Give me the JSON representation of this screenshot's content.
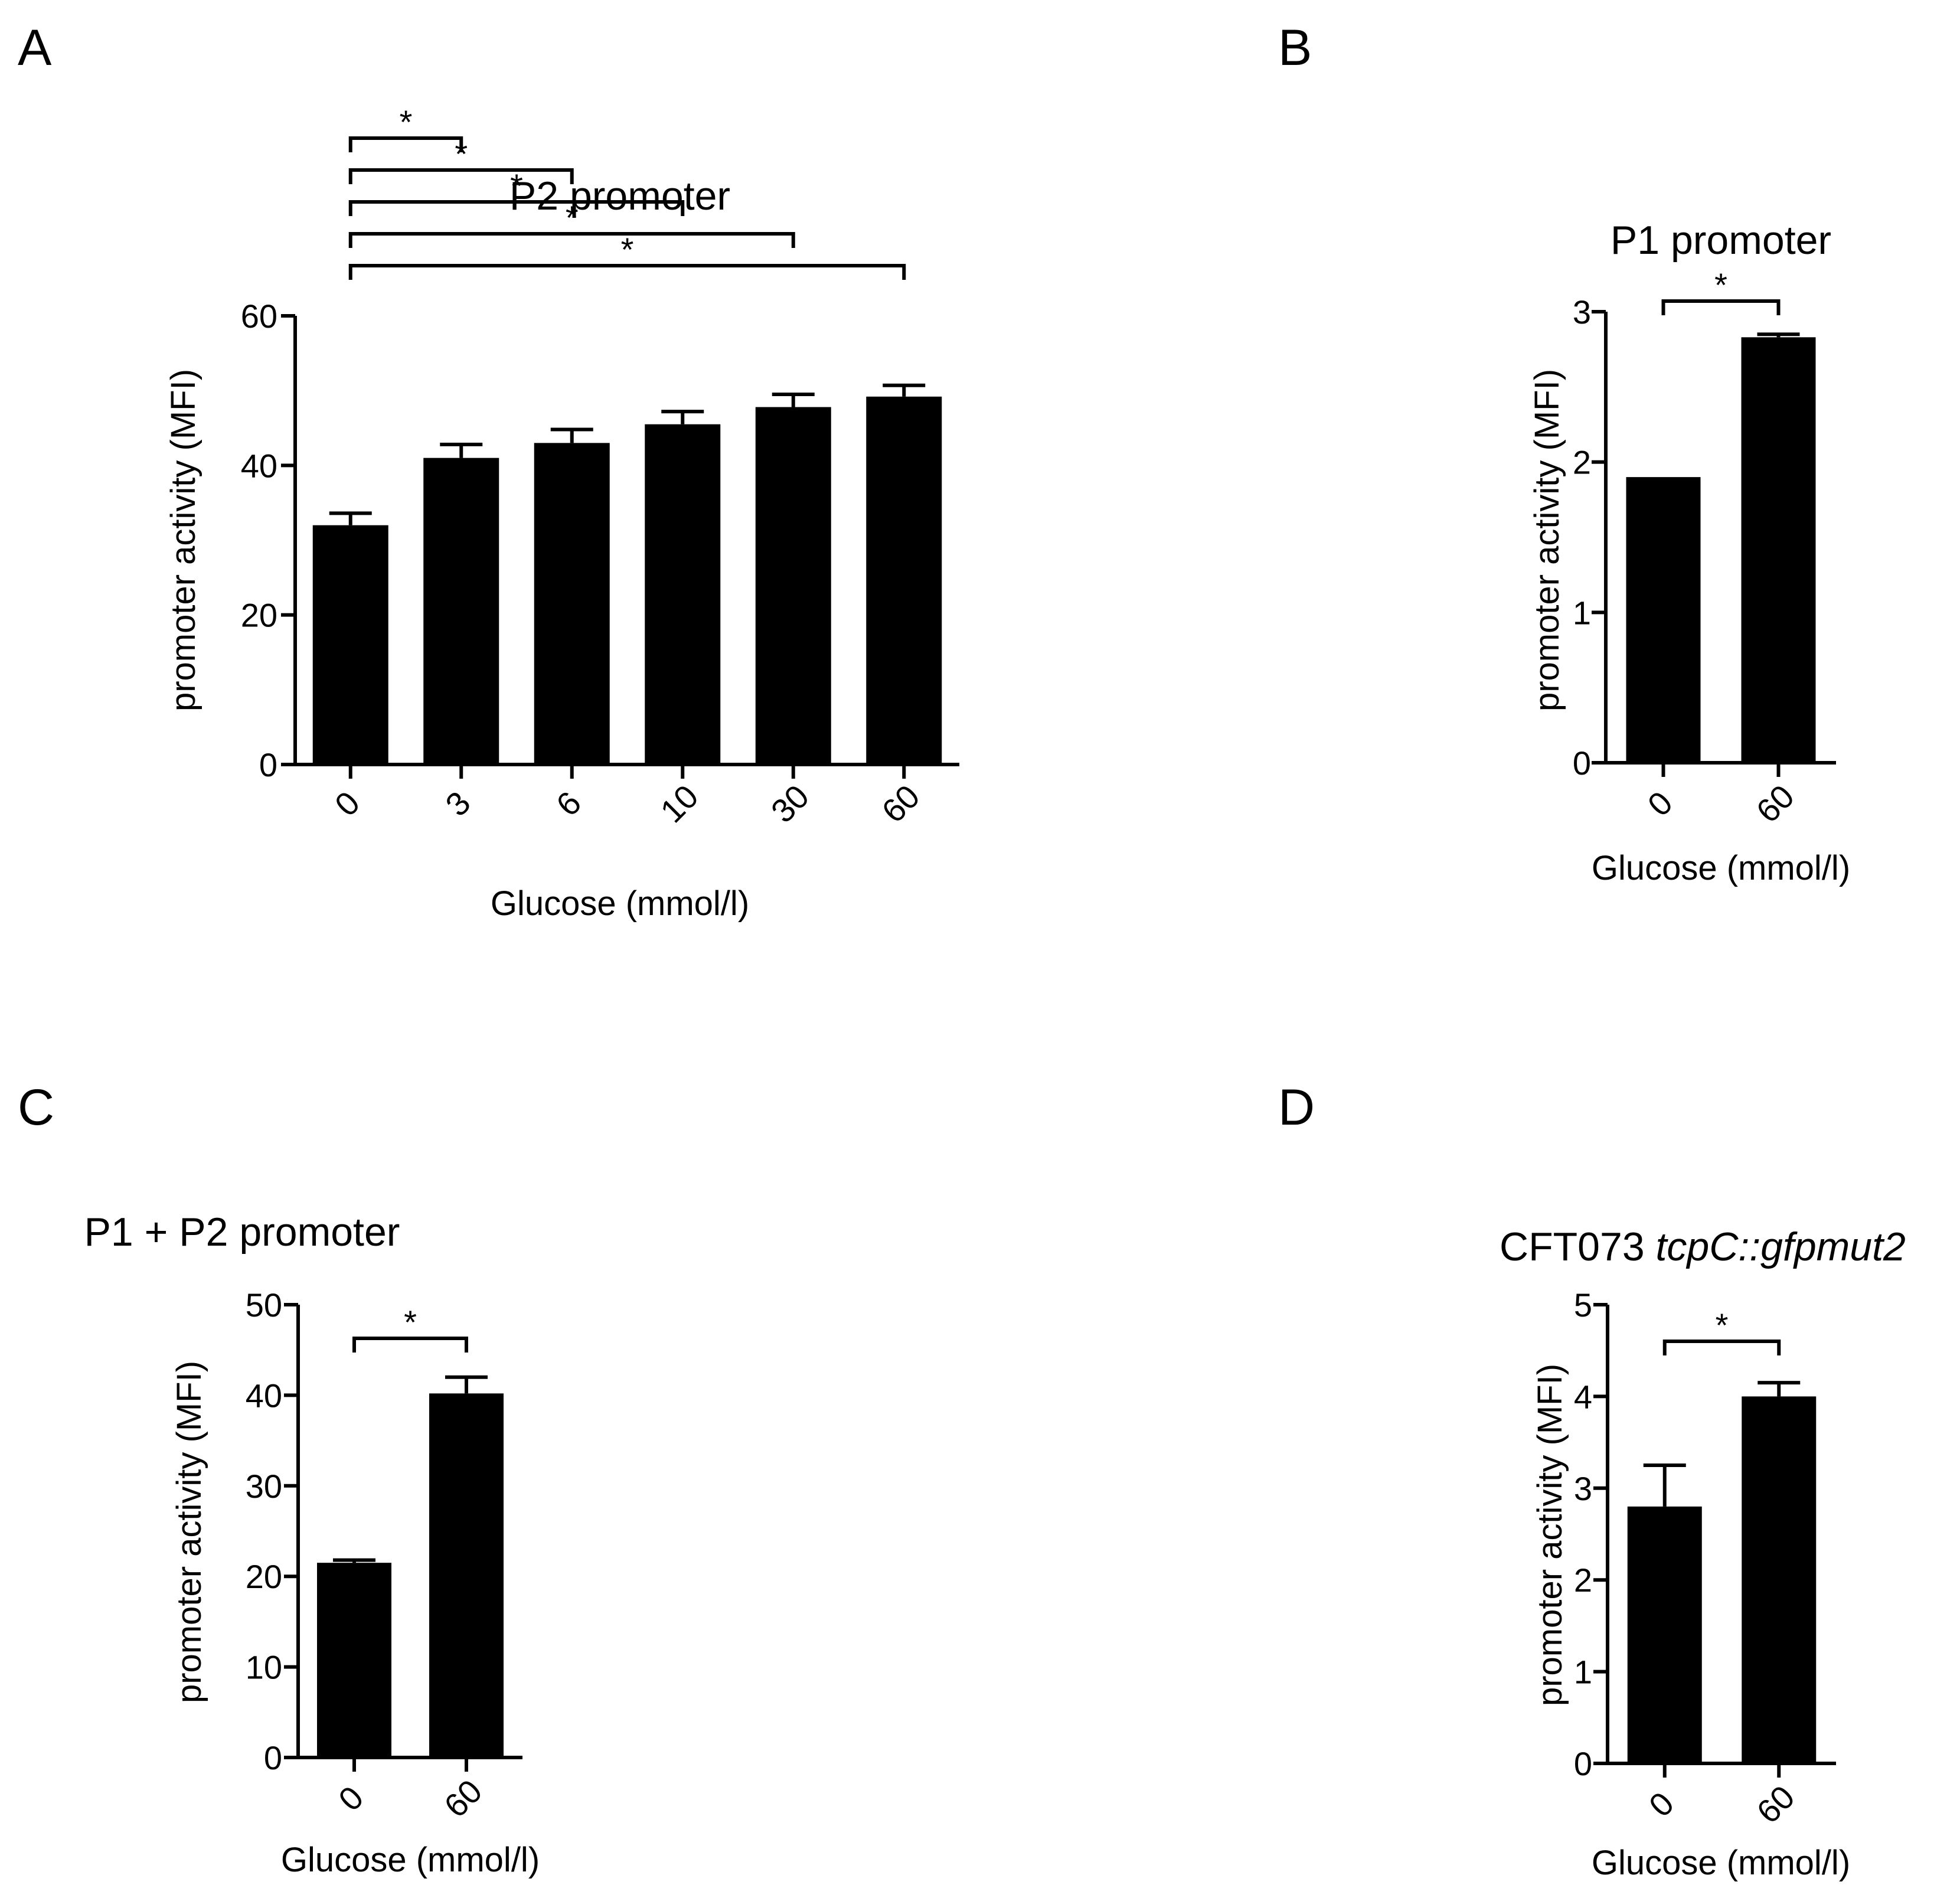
{
  "figure": {
    "ink_color": "#000000",
    "background_color": "#ffffff"
  },
  "chart_data": [
    {
      "panel_label": "A",
      "type": "bar",
      "title": "P2 promoter",
      "xlabel": "Glucose (mmol/l)",
      "ylabel": "promoter activity (MFI)",
      "categories": [
        "0",
        "3",
        "6",
        "10",
        "30",
        "60"
      ],
      "values": [
        32,
        41,
        43,
        45.5,
        47.8,
        49.2
      ],
      "errors": [
        1.6,
        1.8,
        1.8,
        1.7,
        1.7,
        1.5
      ],
      "ylim": [
        0,
        60
      ],
      "yticks": [
        "0",
        "20",
        "40",
        "60"
      ],
      "ytick_values": [
        0,
        20,
        40,
        60
      ],
      "comparisons": [
        {
          "from": 0,
          "to": 1,
          "label": "*"
        },
        {
          "from": 0,
          "to": 2,
          "label": "*"
        },
        {
          "from": 0,
          "to": 3,
          "label": "*"
        },
        {
          "from": 0,
          "to": 4,
          "label": "*"
        },
        {
          "from": 0,
          "to": 5,
          "label": "*"
        }
      ]
    },
    {
      "panel_label": "B",
      "type": "bar",
      "title": "P1 promoter",
      "xlabel": "Glucose (mmol/l)",
      "ylabel": "promoter activity (MFI)",
      "categories": [
        "0",
        "60"
      ],
      "values": [
        1.9,
        2.83
      ],
      "errors": [
        0,
        0.02
      ],
      "ylim": [
        0,
        3
      ],
      "yticks": [
        "0",
        "1",
        "2",
        "3"
      ],
      "ytick_values": [
        0,
        1,
        2,
        3
      ],
      "comparisons": [
        {
          "from": 0,
          "to": 1,
          "label": "*"
        }
      ]
    },
    {
      "panel_label": "C",
      "type": "bar",
      "title": "P1 + P2 promoter",
      "xlabel": "Glucose (mmol/l)",
      "ylabel": "promoter activity (MFI)",
      "categories": [
        "0",
        "60"
      ],
      "values": [
        21.5,
        40.2
      ],
      "errors": [
        0.3,
        1.8
      ],
      "ylim": [
        0,
        50
      ],
      "yticks": [
        "0",
        "10",
        "20",
        "30",
        "40",
        "50"
      ],
      "ytick_values": [
        0,
        10,
        20,
        30,
        40,
        50
      ],
      "comparisons": [
        {
          "from": 0,
          "to": 1,
          "label": "*"
        }
      ]
    },
    {
      "panel_label": "D",
      "type": "bar",
      "title": "CFT073 ",
      "title_italic": "tcpC::gfpmut2",
      "xlabel": "Glucose (mmol/l)",
      "ylabel": "promoter activity (MFI)",
      "categories": [
        "0",
        "60"
      ],
      "values": [
        2.8,
        4.0
      ],
      "errors": [
        0.45,
        0.15
      ],
      "ylim": [
        0,
        5
      ],
      "yticks": [
        "0",
        "1",
        "2",
        "3",
        "4",
        "5"
      ],
      "ytick_values": [
        0,
        1,
        2,
        3,
        4,
        5
      ],
      "comparisons": [
        {
          "from": 0,
          "to": 1,
          "label": "*"
        }
      ]
    }
  ]
}
